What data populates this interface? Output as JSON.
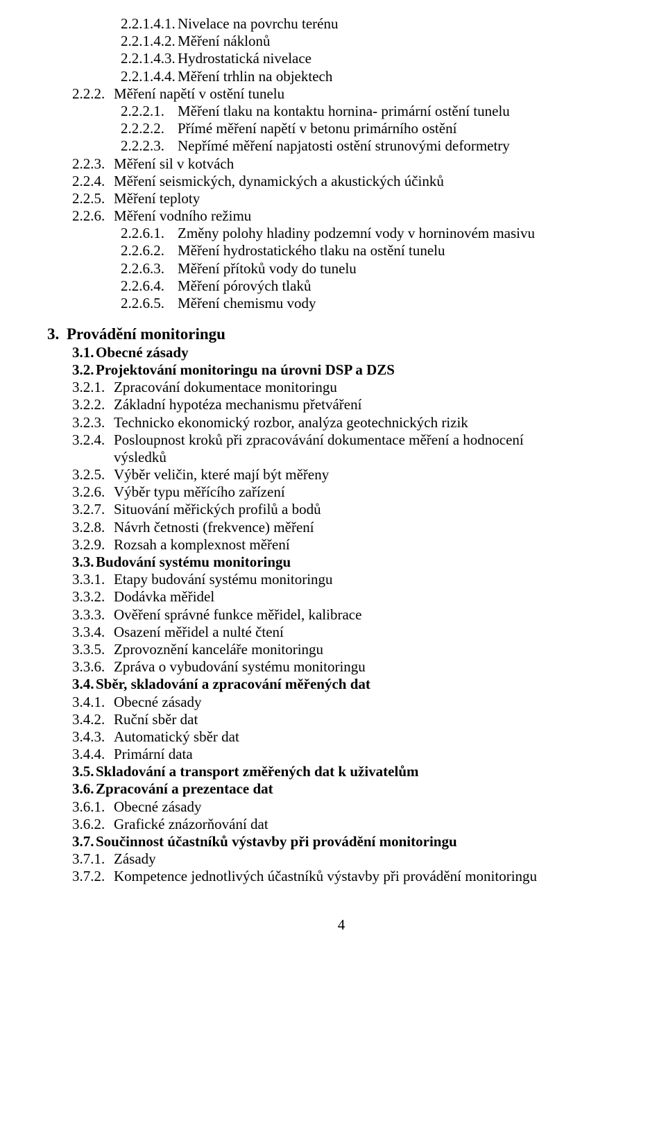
{
  "colors": {
    "text": "#000000",
    "background": "#ffffff"
  },
  "font": {
    "family": "Times New Roman",
    "size_pt": 16
  },
  "s2": {
    "i1": {
      "n": "2.2.1.4.1.",
      "t": "Nivelace na povrchu terénu"
    },
    "i2": {
      "n": "2.2.1.4.2.",
      "t": "Měření náklonů"
    },
    "i3": {
      "n": "2.2.1.4.3.",
      "t": "Hydrostatická nivelace"
    },
    "i4": {
      "n": "2.2.1.4.4.",
      "t": "Měření trhlin na objektech"
    },
    "i5": {
      "n": "2.2.2.",
      "t": "Měření napětí v ostění tunelu"
    },
    "i6": {
      "n": "2.2.2.1.",
      "t": "Měření tlaku na kontaktu hornina- primární ostění tunelu"
    },
    "i7": {
      "n": "2.2.2.2.",
      "t": "Přímé měření napětí v betonu primárního ostění"
    },
    "i8": {
      "n": "2.2.2.3.",
      "t": "Nepřímé měření napjatosti ostění strunovými deformetry"
    },
    "i9": {
      "n": "2.2.3.",
      "t": "Měření sil v kotvách"
    },
    "i10": {
      "n": "2.2.4.",
      "t": "Měření seismických, dynamických a akustických účinků"
    },
    "i11": {
      "n": "2.2.5.",
      "t": "Měření teploty"
    },
    "i12": {
      "n": "2.2.6.",
      "t": "Měření vodního režimu"
    },
    "i13": {
      "n": "2.2.6.1.",
      "t": "Změny polohy hladiny podzemní vody v  horninovém  masivu"
    },
    "i14": {
      "n": "2.2.6.2.",
      "t": "Měření hydrostatického tlaku na ostění tunelu"
    },
    "i15": {
      "n": "2.2.6.3.",
      "t": "Měření přítoků vody do tunelu"
    },
    "i16": {
      "n": "2.2.6.4.",
      "t": "Měření pórových tlaků"
    },
    "i17": {
      "n": "2.2.6.5.",
      "t": "Měření chemismu vody"
    }
  },
  "s3": {
    "h": {
      "n": "3.",
      "t": "Provádění monitoringu"
    },
    "h1": {
      "n": "3.1.",
      "t": "Obecné zásady"
    },
    "h2": {
      "n": "3.2.",
      "t": "Projektování monitoringu na úrovni DSP a DZS"
    },
    "i21": {
      "n": "3.2.1.",
      "t": "Zpracování dokumentace monitoringu"
    },
    "i22": {
      "n": "3.2.2.",
      "t": "Základní hypotéza mechanismu přetváření"
    },
    "i23": {
      "n": "3.2.3.",
      "t": "Technicko ekonomický rozbor, analýza geotechnických rizik"
    },
    "i24": {
      "n": "3.2.4.",
      "t": "Posloupnost kroků při zpracovávání dokumentace měření a hodnocení"
    },
    "i24b": {
      "t": "výsledků"
    },
    "i25": {
      "n": "3.2.5.",
      "t": "Výběr veličin, které mají být měřeny"
    },
    "i26": {
      "n": "3.2.6.",
      "t": "Výběr typu měřícího zařízení"
    },
    "i27": {
      "n": "3.2.7.",
      "t": "Situování měřických profilů a bodů"
    },
    "i28": {
      "n": "3.2.8.",
      "t": "Návrh četnosti (frekvence) měření"
    },
    "i29": {
      "n": "3.2.9.",
      "t": "Rozsah a komplexnost měření"
    },
    "h3": {
      "n": "3.3.",
      "t": "Budování systému monitoringu"
    },
    "i31": {
      "n": "3.3.1.",
      "t": "Etapy budování systému monitoringu"
    },
    "i32": {
      "n": "3.3.2.",
      "t": "Dodávka měřidel"
    },
    "i33": {
      "n": "3.3.3.",
      "t": "Ověření správné funkce měřidel, kalibrace"
    },
    "i34": {
      "n": "3.3.4.",
      "t": "Osazení měřidel a nulté čtení"
    },
    "i35": {
      "n": "3.3.5.",
      "t": "Zprovoznění kanceláře monitoringu"
    },
    "i36": {
      "n": "3.3.6.",
      "t": "Zpráva o vybudování systému monitoringu"
    },
    "h4": {
      "n": "3.4.",
      "t": "Sběr, skladování a zpracování měřených dat"
    },
    "i41": {
      "n": "3.4.1.",
      "t": "Obecné zásady"
    },
    "i42": {
      "n": "3.4.2.",
      "t": "Ruční sběr dat"
    },
    "i43": {
      "n": "3.4.3.",
      "t": "Automatický sběr dat"
    },
    "i44": {
      "n": "3.4.4.",
      "t": "Primární data"
    },
    "h5": {
      "n": "3.5.",
      "t": "Skladování a transport změřených dat k uživatelům"
    },
    "h6": {
      "n": "3.6.",
      "t": " Zpracování a prezentace dat"
    },
    "i61": {
      "n": "3.6.1.",
      "t": "Obecné zásady"
    },
    "i62": {
      "n": "3.6.2.",
      "t": "Grafické znázorňování dat"
    },
    "h7": {
      "n": "3.7.",
      "t": " Součinnost účastníků výstavby při provádění monitoringu"
    },
    "i71": {
      "n": "3.7.1.",
      "t": "Zásady"
    },
    "i72": {
      "n": "3.7.2.",
      "t": "Kompetence jednotlivých účastníků výstavby při provádění monitoringu"
    }
  },
  "page_number": "4"
}
